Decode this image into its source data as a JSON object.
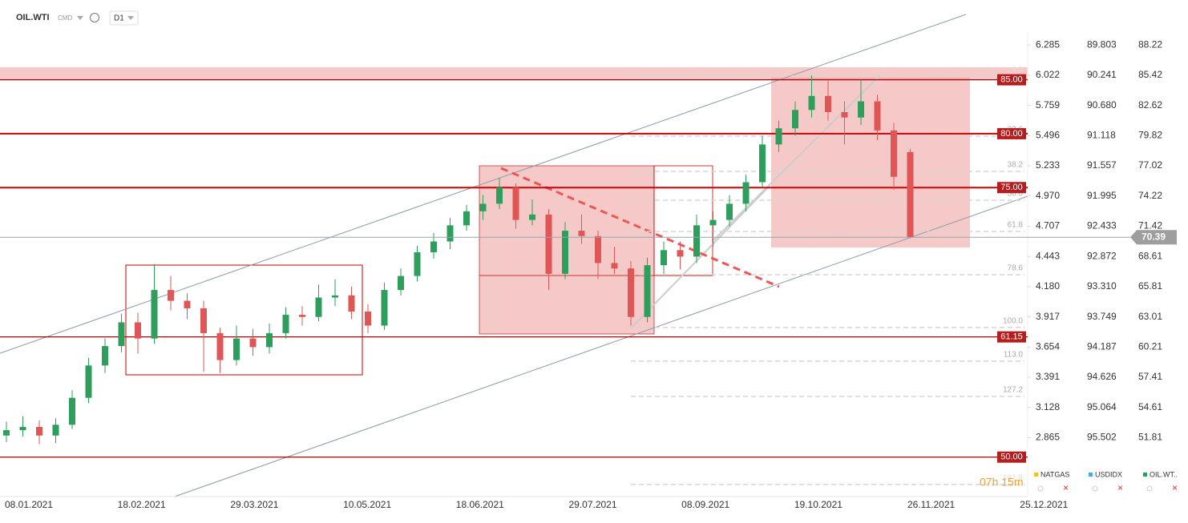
{
  "header": {
    "symbol": "OIL.WTI",
    "market": "CMD",
    "interval": "D1"
  },
  "chart_data": {
    "type": "candlestick",
    "ylim": [
      46.34,
      92.4
    ],
    "yticks": [
      88.22,
      85.42,
      82.62,
      79.82,
      77.02,
      74.22,
      71.42,
      68.61,
      65.81,
      63.01,
      60.21,
      57.41,
      54.61,
      51.81
    ],
    "scale_labels_a": [
      "6.285",
      "6.022",
      "5.759",
      "5.496",
      "5.233",
      "4.970",
      "4.707",
      "4.443",
      "4.180",
      "3.917",
      "3.654",
      "3.391",
      "3.128",
      "2.865"
    ],
    "scale_labels_b": [
      "89.803",
      "90.241",
      "90.680",
      "91.118",
      "91.557",
      "91.995",
      "92.433",
      "92.872",
      "93.310",
      "93.749",
      "94.187",
      "94.626",
      "95.064",
      "95.502"
    ],
    "x_labels": [
      "08.01.2021",
      "18.02.2021",
      "29.03.2021",
      "10.05.2021",
      "18.06.2021",
      "29.07.2021",
      "08.09.2021",
      "19.10.2021",
      "26.11.2021",
      "25.12.2021"
    ],
    "up_color": "#2e9e5c",
    "down_color": "#e05555",
    "candles": [
      [
        52.0,
        53.3,
        51.4,
        52.5
      ],
      [
        52.5,
        53.8,
        51.9,
        52.8
      ],
      [
        52.8,
        53.4,
        51.2,
        52.0
      ],
      [
        52.0,
        53.6,
        51.3,
        53.0
      ],
      [
        53.0,
        56.2,
        52.6,
        55.5
      ],
      [
        55.5,
        59.2,
        55.0,
        58.5
      ],
      [
        58.5,
        61.0,
        57.8,
        60.3
      ],
      [
        60.3,
        63.3,
        59.7,
        62.5
      ],
      [
        62.5,
        63.4,
        59.6,
        61.0
      ],
      [
        61.0,
        67.9,
        60.5,
        65.5
      ],
      [
        65.5,
        66.8,
        63.6,
        64.5
      ],
      [
        64.5,
        65.2,
        62.8,
        63.8
      ],
      [
        63.8,
        64.5,
        57.9,
        61.5
      ],
      [
        61.5,
        62.0,
        57.8,
        59.0
      ],
      [
        59.0,
        62.2,
        58.5,
        61.0
      ],
      [
        61.0,
        61.9,
        59.4,
        60.2
      ],
      [
        60.2,
        62.4,
        59.6,
        61.5
      ],
      [
        61.5,
        63.9,
        61.0,
        63.2
      ],
      [
        63.2,
        64.0,
        62.2,
        63.0
      ],
      [
        63.0,
        66.0,
        62.6,
        64.8
      ],
      [
        64.8,
        66.5,
        64.0,
        65.0
      ],
      [
        65.0,
        65.8,
        62.8,
        63.5
      ],
      [
        63.5,
        64.2,
        61.5,
        62.2
      ],
      [
        62.2,
        66.2,
        61.8,
        65.5
      ],
      [
        65.5,
        67.5,
        65.0,
        66.8
      ],
      [
        66.8,
        69.6,
        66.3,
        69.0
      ],
      [
        69.0,
        70.8,
        68.4,
        70.0
      ],
      [
        70.0,
        72.2,
        69.3,
        71.5
      ],
      [
        71.5,
        73.4,
        71.0,
        72.8
      ],
      [
        72.8,
        74.3,
        72.0,
        73.5
      ],
      [
        73.5,
        75.9,
        73.0,
        75.0
      ],
      [
        75.0,
        75.4,
        71.2,
        72.0
      ],
      [
        72.0,
        73.9,
        71.5,
        72.5
      ],
      [
        72.5,
        73.0,
        65.5,
        67.0
      ],
      [
        67.0,
        71.8,
        66.5,
        71.0
      ],
      [
        71.0,
        72.5,
        69.8,
        70.5
      ],
      [
        70.5,
        71.0,
        66.5,
        68.0
      ],
      [
        68.0,
        69.5,
        67.0,
        67.5
      ],
      [
        67.5,
        68.2,
        62.2,
        63.0
      ],
      [
        63.0,
        68.5,
        62.5,
        67.8
      ],
      [
        67.8,
        70.0,
        67.0,
        69.2
      ],
      [
        69.2,
        70.0,
        67.4,
        68.6
      ],
      [
        68.6,
        72.5,
        68.0,
        71.5
      ],
      [
        71.5,
        72.8,
        69.5,
        72.0
      ],
      [
        72.0,
        74.3,
        71.4,
        73.5
      ],
      [
        73.5,
        76.2,
        72.8,
        75.5
      ],
      [
        75.5,
        79.8,
        75.0,
        79.0
      ],
      [
        79.0,
        81.2,
        78.3,
        80.5
      ],
      [
        80.5,
        83.0,
        79.8,
        82.2
      ],
      [
        82.2,
        85.4,
        81.5,
        83.5
      ],
      [
        83.5,
        84.9,
        81.2,
        82.0
      ],
      [
        82.0,
        83.0,
        79.0,
        81.5
      ],
      [
        81.5,
        85.0,
        80.8,
        83.0
      ],
      [
        83.0,
        83.6,
        79.4,
        80.3
      ],
      [
        80.3,
        81.0,
        74.8,
        76.0
      ],
      [
        78.3,
        78.6,
        70.3,
        70.39
      ]
    ],
    "levels": [
      {
        "value": 85,
        "label": "85.00"
      },
      {
        "value": 80,
        "label": "80.00"
      },
      {
        "value": 75,
        "label": "75.00"
      },
      {
        "value": 61.15,
        "label": "61.15"
      },
      {
        "value": 50,
        "label": "50.00"
      }
    ],
    "fib_levels": [
      {
        "value": 85.35,
        "label": "0.0"
      },
      {
        "value": 79.77,
        "label": "23.6"
      },
      {
        "value": 76.5,
        "label": "38.2"
      },
      {
        "value": 73.83,
        "label": "50.0"
      },
      {
        "value": 70.93,
        "label": "61.8"
      },
      {
        "value": 66.92,
        "label": "78.6"
      },
      {
        "value": 62.02,
        "label": "100.0"
      },
      {
        "value": 58.9,
        "label": "113.0"
      },
      {
        "value": 55.63,
        "label": "127.2"
      },
      {
        "value": 47.46,
        "label": "161.8"
      }
    ],
    "last_price": 70.39,
    "timer": "07h 15m",
    "legend": [
      {
        "name": "NATGAS",
        "color": "#f5c518"
      },
      {
        "name": "USDIDX",
        "color": "#4aa8e8"
      },
      {
        "name": "OIL.WT..",
        "color": "#2e9e5c"
      }
    ]
  }
}
